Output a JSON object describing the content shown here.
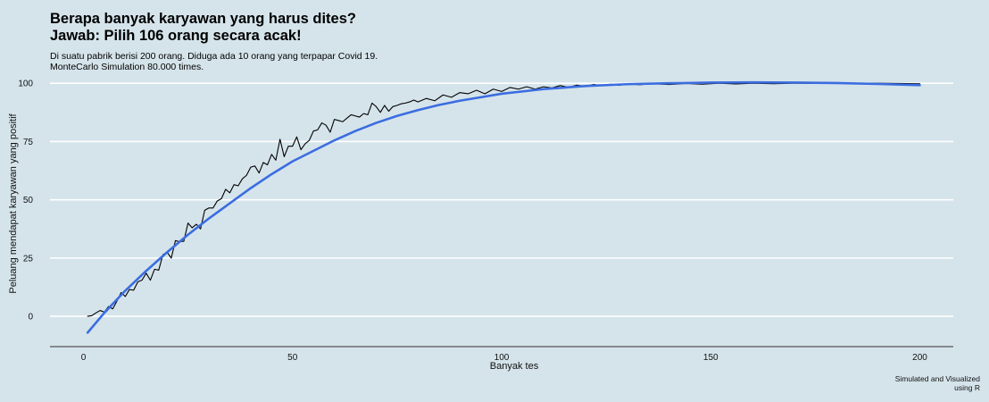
{
  "colors": {
    "background": "#d5e4eb",
    "grid": "#ffffff",
    "simulated_line": "#000000",
    "smooth_line": "#3b6de0",
    "axis": "#555555"
  },
  "chart_data": {
    "type": "line",
    "title_line1": "Berapa banyak karyawan yang harus dites?",
    "title_line2": "Jawab: Pilih 106 orang secara acak!",
    "subtitle_line1": "Di suatu pabrik berisi 200 orang. Diduga ada 10 orang yang terpapar Covid 19.",
    "subtitle_line2": "MonteCarlo Simulation 80.000 times.",
    "xlabel": "Banyak tes",
    "ylabel": "Peluang mendapat karyawan yang positif",
    "caption_line1": "Simulated and Visualized",
    "caption_line2": "using R",
    "xlim": [
      -8,
      208
    ],
    "ylim": [
      -13,
      102
    ],
    "x_ticks": [
      0,
      50,
      100,
      150,
      200
    ],
    "y_ticks": [
      0,
      25,
      50,
      75,
      100
    ],
    "x_tick_labels": [
      "0",
      "50",
      "100",
      "150",
      "200"
    ],
    "y_tick_labels": [
      "0",
      "25",
      "50",
      "75",
      "100"
    ],
    "grid": "horizontal",
    "legend": "none",
    "series": [
      {
        "style": "jagged-black",
        "x": [
          1,
          2,
          3,
          4,
          5,
          6,
          7,
          8,
          9,
          10,
          11,
          12,
          13,
          14,
          15,
          16,
          17,
          18,
          19,
          20,
          21,
          22,
          23,
          24,
          25,
          26,
          27,
          28,
          29,
          30,
          31,
          32,
          33,
          34,
          35,
          36,
          37,
          38,
          39,
          40,
          41,
          42,
          43,
          44,
          45,
          46,
          47,
          48,
          49,
          50,
          51,
          52,
          53,
          54,
          55,
          56,
          57,
          58,
          59,
          60,
          61,
          62,
          63,
          64,
          65,
          66,
          67,
          68,
          69,
          70,
          71,
          72,
          73,
          74,
          75,
          76,
          77,
          78,
          79,
          80,
          82,
          84,
          86,
          88,
          90,
          92,
          94,
          96,
          98,
          100,
          102,
          104,
          106,
          108,
          110,
          112,
          114,
          116,
          118,
          120,
          122,
          124,
          126,
          128,
          130,
          133,
          136,
          140,
          144,
          148,
          152,
          156,
          160,
          165,
          170,
          175,
          180,
          185,
          190,
          195,
          200
        ],
        "y": [
          0,
          0.3,
          1.5,
          2.5,
          1.8,
          4.2,
          3.2,
          6.5,
          10.2,
          8.5,
          11.5,
          11.2,
          14.8,
          15.5,
          18.5,
          15.5,
          20.2,
          19.8,
          26.5,
          27.5,
          25,
          32.5,
          32,
          32.2,
          40,
          38,
          39.5,
          37.5,
          45.5,
          46.5,
          46.5,
          49.5,
          50.5,
          54.5,
          53,
          56.5,
          56,
          59,
          60.5,
          64,
          64.5,
          61.5,
          66,
          65,
          69.5,
          67,
          76,
          68.5,
          73,
          73,
          77,
          71.5,
          74,
          75.5,
          79.5,
          80,
          83,
          82,
          79,
          84.5,
          84,
          83.5,
          85,
          86.5,
          86,
          85.5,
          87,
          86.5,
          91.5,
          90,
          87.5,
          90.5,
          88,
          90,
          90.5,
          91.2,
          91.5,
          92,
          92.8,
          92,
          93.5,
          92.5,
          95,
          94,
          96,
          95.5,
          97,
          95.5,
          97.5,
          96.5,
          98.2,
          97.5,
          98.5,
          97.5,
          98.5,
          98,
          99,
          98.3,
          99.2,
          98.7,
          99.5,
          99,
          99.6,
          99.1,
          99.7,
          99.4,
          99.8,
          99.5,
          99.9,
          99.6,
          100,
          99.7,
          100,
          99.8,
          100,
          99.9,
          100,
          100,
          100,
          99.9,
          99.8
        ]
      },
      {
        "style": "smooth-blue",
        "x": [
          1,
          5,
          10,
          15,
          20,
          25,
          30,
          35,
          40,
          45,
          50,
          55,
          60,
          65,
          70,
          75,
          80,
          85,
          90,
          95,
          100,
          110,
          120,
          130,
          140,
          150,
          160,
          170,
          180,
          190,
          200
        ],
        "y": [
          -7,
          1.5,
          11,
          19.5,
          27.5,
          35,
          42,
          48.5,
          55,
          61,
          66.5,
          71,
          75.5,
          79.5,
          83,
          86,
          88.5,
          90.7,
          92.5,
          94,
          95.5,
          97.5,
          98.8,
          99.6,
          100,
          100.3,
          100.4,
          100.3,
          100.1,
          99.7,
          99.2
        ]
      }
    ]
  }
}
